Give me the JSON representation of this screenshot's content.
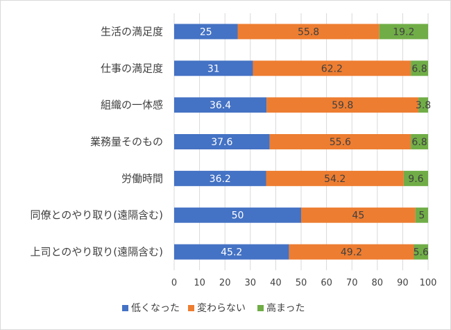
{
  "chart_data": {
    "type": "bar",
    "orientation": "horizontal",
    "stacked": true,
    "categories": [
      "生活の満足度",
      "仕事の満足度",
      "組織の一体感",
      "業務量そのもの",
      "労働時間",
      "同僚とのやり取り(遠隔含む)",
      "上司とのやり取り(遠隔含む)"
    ],
    "series": [
      {
        "name": "低くなった",
        "values": [
          25,
          31,
          36.4,
          37.6,
          36.2,
          50,
          45.2
        ],
        "color": "#4472c4",
        "label_color": "#ffffff"
      },
      {
        "name": "変わらない",
        "values": [
          55.8,
          62.2,
          59.8,
          55.6,
          54.2,
          45,
          49.2
        ],
        "color": "#ed7d31",
        "label_color": "#404040"
      },
      {
        "name": "高まった",
        "values": [
          19.2,
          6.8,
          3.8,
          6.8,
          9.6,
          5,
          5.6
        ],
        "color": "#70ad47",
        "label_color": "#404040"
      }
    ],
    "xlim": [
      0,
      100
    ],
    "xticks": [
      0,
      10,
      20,
      30,
      40,
      50,
      60,
      70,
      80,
      90,
      100
    ],
    "grid": true,
    "legend_position": "bottom",
    "title": "",
    "xlabel": "",
    "ylabel": ""
  }
}
